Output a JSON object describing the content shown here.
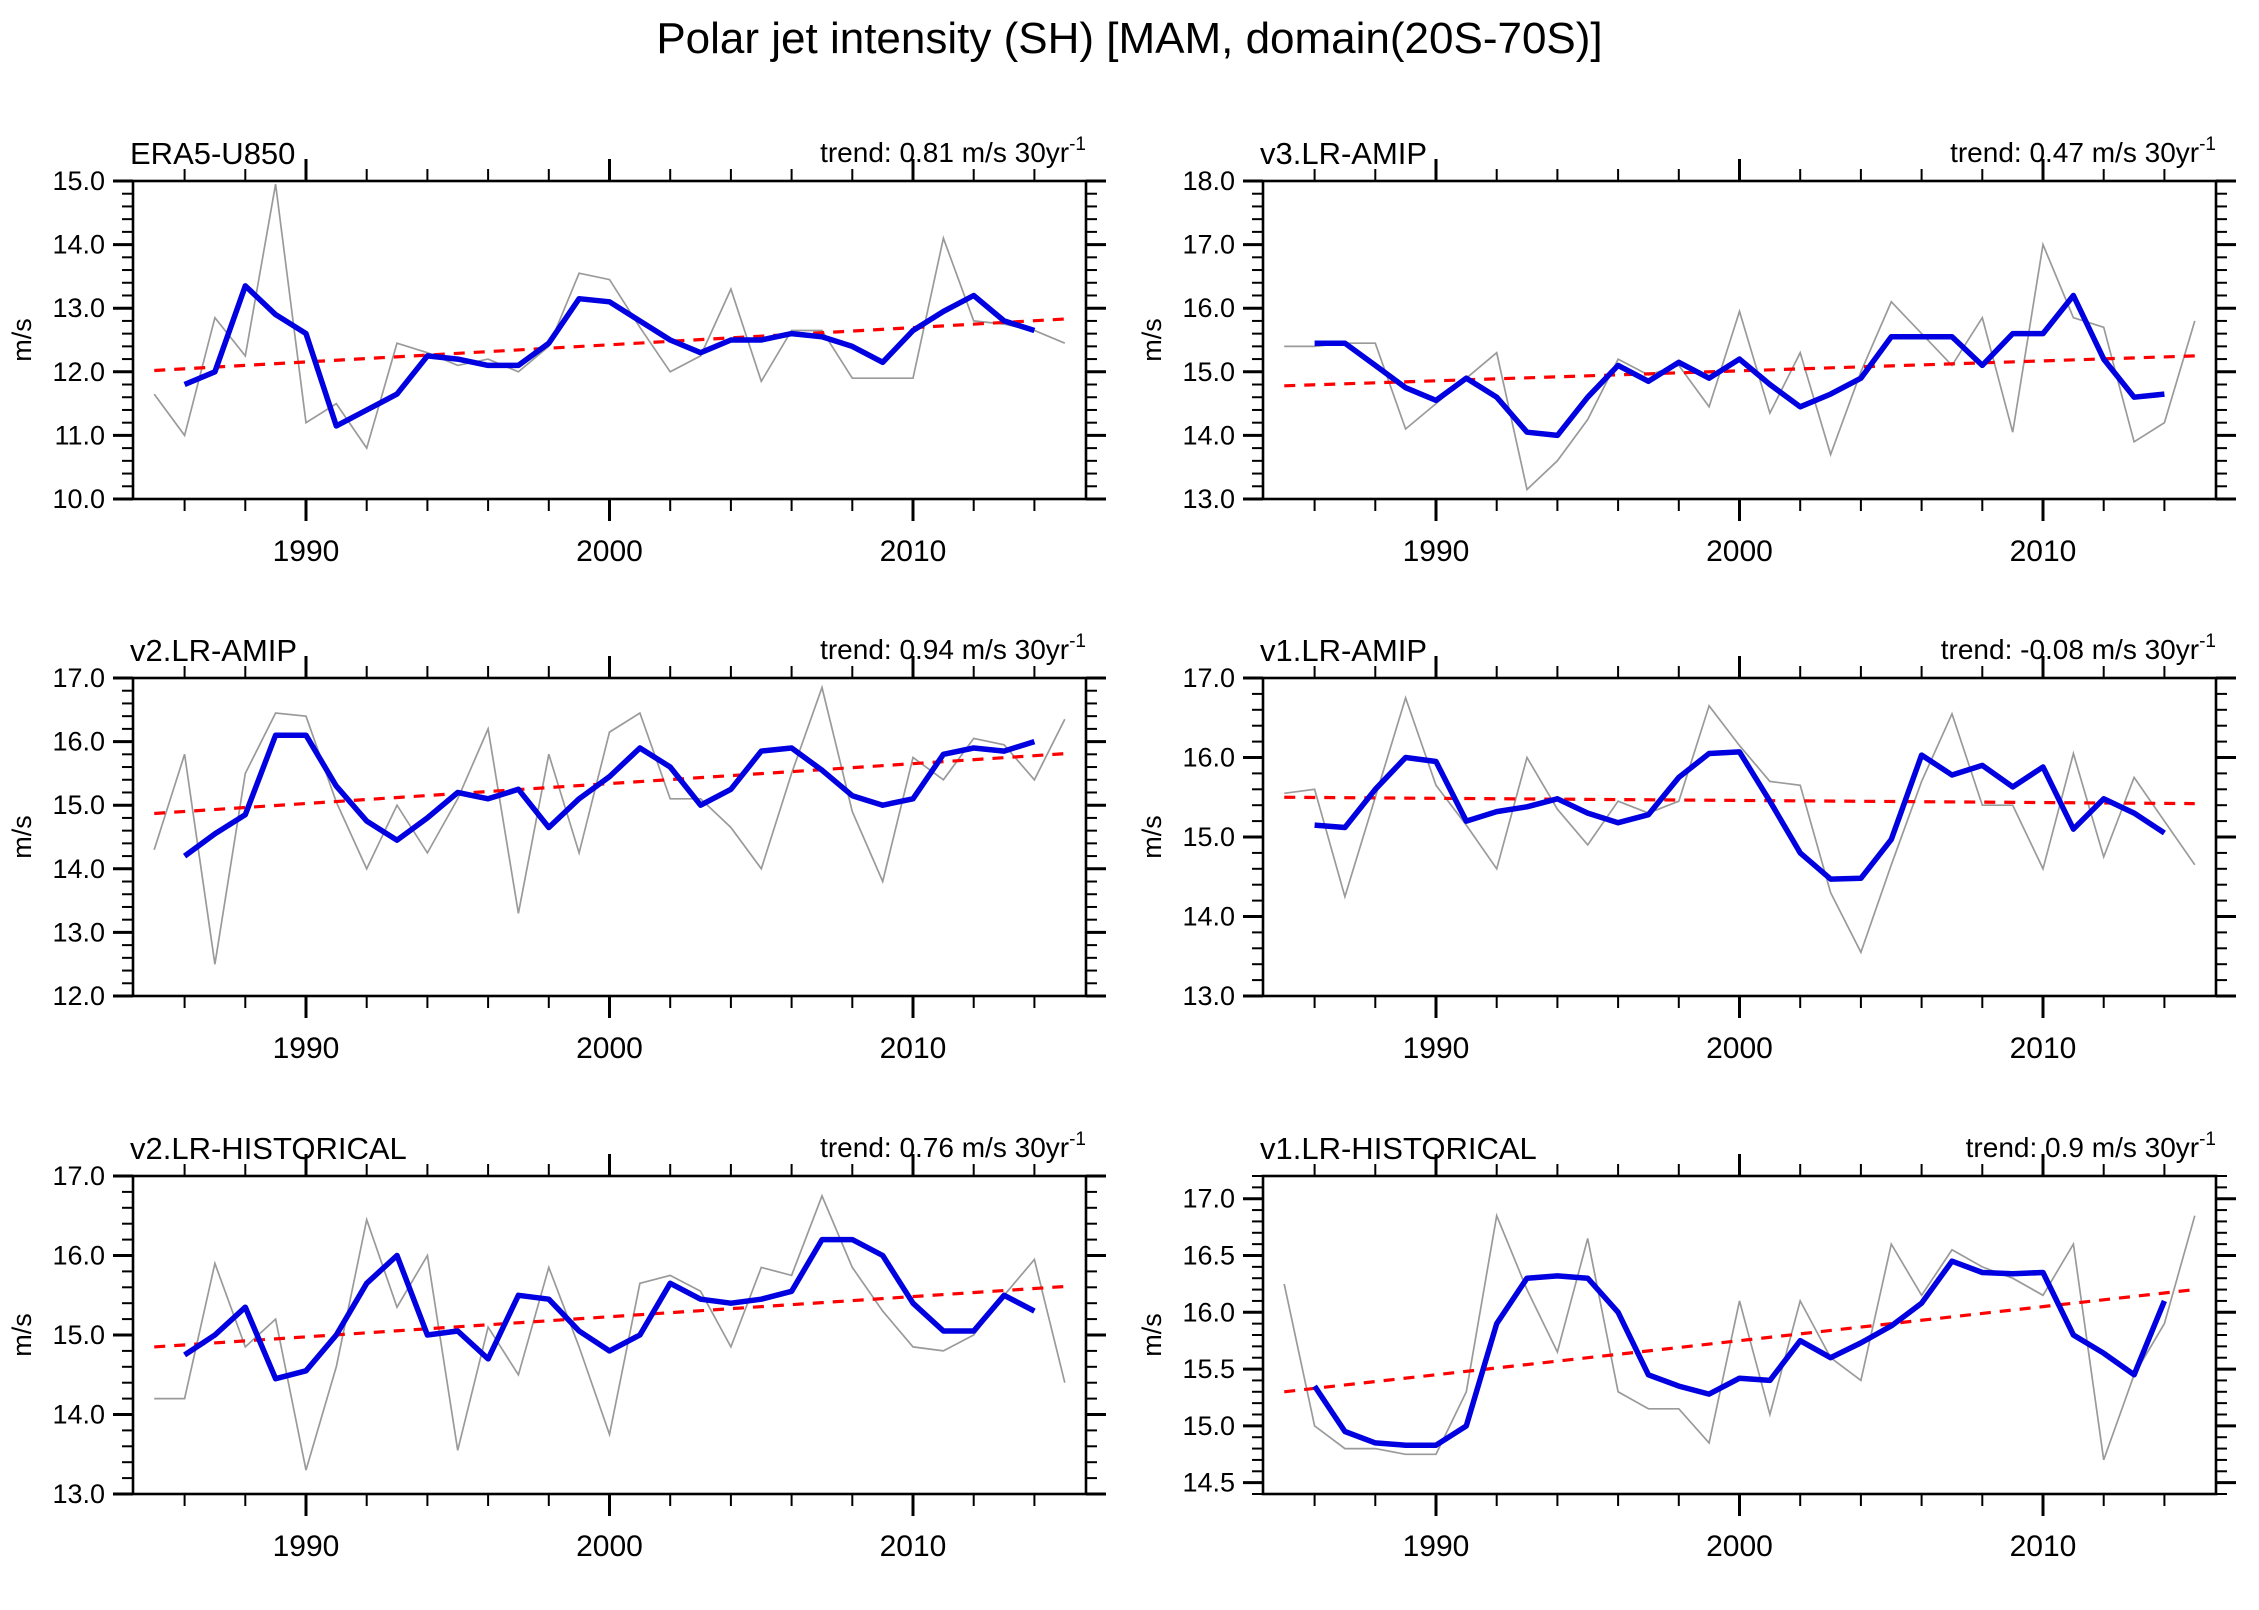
{
  "page": {
    "title": "Polar jet intensity (SH) [MAM, domain(20S-70S)]"
  },
  "colors": {
    "annual_line": "#9a9a9a",
    "smoothed_line": "#0000e0",
    "trend_line": "#ff0000",
    "axis": "#000000",
    "background": "#ffffff"
  },
  "axis": {
    "x_range": [
      1984.3,
      2015.7
    ],
    "x_major_ticks": [
      1990,
      2000,
      2010
    ],
    "x_tick_labels": [
      "1990",
      "2000",
      "2010"
    ],
    "x_minor_step_years": 2,
    "unit_label": "m/s"
  },
  "chart_data": [
    {
      "type": "line",
      "title": "ERA5-U850",
      "trend_label": "trend: 0.81 m/s 30yr",
      "trend_sup": "-1",
      "trend_per_30yr": 0.81,
      "ylabel": "m/s",
      "ylim": [
        10.0,
        15.0
      ],
      "ytick_step": 1.0,
      "yminor_step": 0.2,
      "years_start": 1985,
      "annual_gray": [
        11.65,
        11.0,
        12.85,
        12.25,
        14.95,
        11.2,
        11.5,
        10.8,
        12.45,
        12.3,
        12.1,
        12.2,
        12.0,
        12.4,
        13.55,
        13.45,
        12.7,
        12.0,
        12.25,
        13.3,
        11.85,
        12.65,
        12.65,
        11.9,
        11.9,
        11.9,
        14.1,
        12.8,
        12.75,
        12.65,
        12.45
      ],
      "smoothed_start": 1986,
      "smoothed_blue": [
        11.8,
        12.0,
        13.35,
        12.9,
        12.6,
        11.15,
        11.4,
        11.65,
        12.25,
        12.2,
        12.1,
        12.1,
        12.45,
        13.15,
        13.1,
        12.8,
        12.5,
        12.3,
        12.5,
        12.5,
        12.6,
        12.55,
        12.4,
        12.15,
        12.65,
        12.95,
        13.2,
        12.8,
        12.65
      ],
      "trendline": {
        "x": [
          1985,
          2015
        ],
        "y": [
          12.02,
          12.83
        ]
      }
    },
    {
      "type": "line",
      "title": "v3.LR-AMIP",
      "trend_label": "trend: 0.47 m/s 30yr",
      "trend_sup": "-1",
      "trend_per_30yr": 0.47,
      "ylabel": "m/s",
      "ylim": [
        13.0,
        18.0
      ],
      "ytick_step": 1.0,
      "yminor_step": 0.2,
      "years_start": 1985,
      "annual_gray": [
        15.4,
        15.4,
        15.45,
        15.45,
        14.1,
        14.5,
        14.9,
        15.3,
        13.15,
        13.6,
        14.25,
        15.2,
        14.95,
        15.1,
        14.45,
        15.95,
        14.35,
        15.3,
        13.7,
        15.0,
        16.1,
        15.6,
        15.1,
        15.85,
        14.05,
        17.0,
        15.85,
        15.7,
        13.9,
        14.2,
        15.8
      ],
      "smoothed_start": 1986,
      "smoothed_blue": [
        15.45,
        15.45,
        15.1,
        14.75,
        14.55,
        14.9,
        14.6,
        14.05,
        14.0,
        14.6,
        15.1,
        14.85,
        15.15,
        14.9,
        15.2,
        14.8,
        14.45,
        14.65,
        14.9,
        15.55,
        15.55,
        15.55,
        15.1,
        15.6,
        15.6,
        16.2,
        15.2,
        14.6,
        14.65
      ],
      "trendline": {
        "x": [
          1985,
          2015
        ],
        "y": [
          14.78,
          15.25
        ]
      }
    },
    {
      "type": "line",
      "title": "v2.LR-AMIP",
      "trend_label": "trend: 0.94 m/s 30yr",
      "trend_sup": "-1",
      "trend_per_30yr": 0.94,
      "ylabel": "m/s",
      "ylim": [
        12.0,
        17.0
      ],
      "ytick_step": 1.0,
      "yminor_step": 0.2,
      "years_start": 1985,
      "annual_gray": [
        14.3,
        15.8,
        12.5,
        15.5,
        16.45,
        16.4,
        15.05,
        14.0,
        15.0,
        14.25,
        15.1,
        16.2,
        13.3,
        15.8,
        14.25,
        16.15,
        16.45,
        15.1,
        15.1,
        14.65,
        14.0,
        15.5,
        16.85,
        14.9,
        13.8,
        15.75,
        15.4,
        16.05,
        15.95,
        15.4,
        16.35
      ],
      "smoothed_start": 1986,
      "smoothed_blue": [
        14.2,
        14.55,
        14.85,
        16.1,
        16.1,
        15.3,
        14.75,
        14.45,
        14.8,
        15.2,
        15.1,
        15.25,
        14.65,
        15.1,
        15.45,
        15.9,
        15.6,
        15.0,
        15.25,
        15.85,
        15.9,
        15.55,
        15.15,
        15.0,
        15.1,
        15.8,
        15.9,
        15.85,
        16.0
      ],
      "trendline": {
        "x": [
          1985,
          2015
        ],
        "y": [
          14.87,
          15.81
        ]
      }
    },
    {
      "type": "line",
      "title": "v1.LR-AMIP",
      "trend_label": "trend: -0.08 m/s 30yr",
      "trend_sup": "-1",
      "trend_per_30yr": -0.08,
      "ylabel": "m/s",
      "ylim": [
        13.0,
        17.0
      ],
      "ytick_step": 1.0,
      "yminor_step": 0.2,
      "years_start": 1985,
      "annual_gray": [
        15.55,
        15.6,
        14.25,
        15.5,
        16.75,
        15.65,
        15.15,
        14.6,
        16.0,
        15.35,
        14.9,
        15.45,
        15.3,
        15.45,
        16.65,
        16.15,
        15.7,
        15.65,
        14.3,
        13.55,
        14.65,
        15.7,
        16.55,
        15.4,
        15.4,
        14.6,
        16.05,
        14.75,
        15.75,
        15.2,
        14.65
      ],
      "smoothed_start": 1986,
      "smoothed_blue": [
        15.15,
        15.12,
        15.6,
        16.0,
        15.95,
        15.2,
        15.32,
        15.38,
        15.48,
        15.3,
        15.18,
        15.28,
        15.75,
        16.05,
        16.07,
        15.45,
        14.8,
        14.47,
        14.48,
        14.97,
        16.03,
        15.78,
        15.9,
        15.63,
        15.88,
        15.1,
        15.48,
        15.3,
        15.05
      ],
      "trendline": {
        "x": [
          1985,
          2015
        ],
        "y": [
          15.5,
          15.42
        ]
      }
    },
    {
      "type": "line",
      "title": "v2.LR-HISTORICAL",
      "trend_label": "trend: 0.76 m/s 30yr",
      "trend_sup": "-1",
      "trend_per_30yr": 0.76,
      "ylabel": "m/s",
      "ylim": [
        13.0,
        17.0
      ],
      "ytick_step": 1.0,
      "yminor_step": 0.2,
      "years_start": 1985,
      "annual_gray": [
        14.2,
        14.2,
        15.9,
        14.85,
        15.2,
        13.3,
        14.6,
        16.45,
        15.35,
        16.0,
        13.55,
        15.1,
        14.5,
        15.85,
        14.85,
        13.75,
        15.65,
        15.75,
        15.55,
        14.85,
        15.85,
        15.75,
        16.75,
        15.85,
        15.3,
        14.85,
        14.8,
        15.0,
        15.5,
        15.95,
        14.4
      ],
      "smoothed_start": 1986,
      "smoothed_blue": [
        14.75,
        15.0,
        15.35,
        14.45,
        14.55,
        15.0,
        15.65,
        16.0,
        15.0,
        15.05,
        14.7,
        15.5,
        15.45,
        15.05,
        14.8,
        15.0,
        15.65,
        15.45,
        15.4,
        15.45,
        15.55,
        16.2,
        16.2,
        16.0,
        15.4,
        15.05,
        15.05,
        15.5,
        15.3
      ],
      "trendline": {
        "x": [
          1985,
          2015
        ],
        "y": [
          14.85,
          15.61
        ]
      }
    },
    {
      "type": "line",
      "title": "v1.LR-HISTORICAL",
      "trend_label": "trend: 0.9 m/s 30yr",
      "trend_sup": "-1",
      "trend_per_30yr": 0.9,
      "ylabel": "m/s",
      "ylim": [
        14.4,
        17.2
      ],
      "ytick_step": 0.5,
      "yminor_step": 0.1,
      "years_start": 1985,
      "annual_gray": [
        16.25,
        15.0,
        14.8,
        14.8,
        14.75,
        14.75,
        15.3,
        16.85,
        16.2,
        15.65,
        16.65,
        15.3,
        15.15,
        15.15,
        14.85,
        16.1,
        15.1,
        16.1,
        15.6,
        15.4,
        16.6,
        16.15,
        16.55,
        16.4,
        16.3,
        16.15,
        16.6,
        14.7,
        15.45,
        15.9,
        16.85
      ],
      "smoothed_start": 1986,
      "smoothed_blue": [
        15.35,
        14.95,
        14.85,
        14.83,
        14.83,
        15.0,
        15.9,
        16.3,
        16.32,
        16.3,
        16.0,
        15.45,
        15.35,
        15.28,
        15.42,
        15.4,
        15.75,
        15.6,
        15.73,
        15.88,
        16.08,
        16.45,
        16.35,
        16.34,
        16.35,
        15.8,
        15.64,
        15.45,
        16.1
      ],
      "trendline": {
        "x": [
          1985,
          2015
        ],
        "y": [
          15.3,
          16.2
        ]
      }
    }
  ]
}
